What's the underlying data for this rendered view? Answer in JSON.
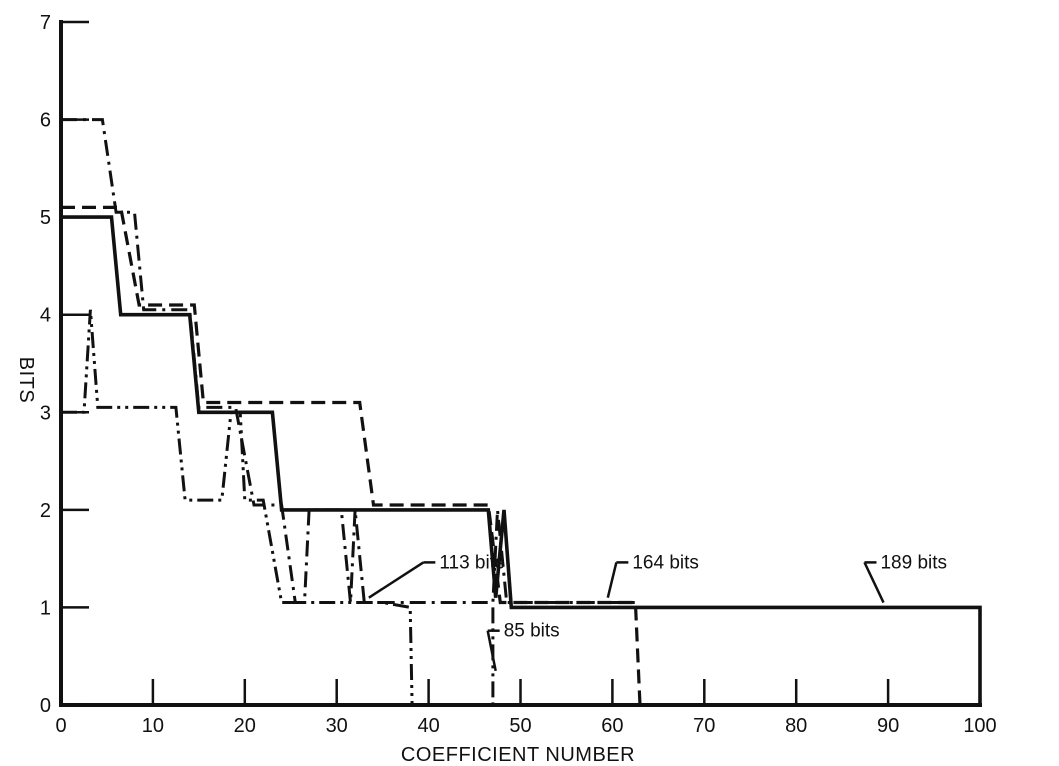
{
  "chart_data": {
    "type": "line",
    "title": "",
    "xlabel": "COEFFICIENT NUMBER",
    "ylabel": "BITS",
    "xlim": [
      0,
      100
    ],
    "ylim": [
      0,
      7
    ],
    "grid": false,
    "x_ticks": [
      0,
      10,
      20,
      30,
      40,
      50,
      60,
      70,
      80,
      90,
      100
    ],
    "y_ticks": [
      0,
      1,
      2,
      3,
      4,
      5,
      6,
      7
    ],
    "series": [
      {
        "style": "solid",
        "color": "#111111",
        "points": [
          [
            0,
            5
          ],
          [
            5.5,
            5
          ],
          [
            6.5,
            4
          ],
          [
            14,
            4
          ],
          [
            15,
            3
          ],
          [
            23,
            3
          ],
          [
            24,
            2
          ],
          [
            46.5,
            2
          ],
          [
            47.3,
            1.1
          ],
          [
            48.2,
            2
          ],
          [
            49,
            1
          ],
          [
            100,
            1
          ],
          [
            100,
            0
          ]
        ]
      },
      {
        "style": "dashed",
        "color": "#111111",
        "points": [
          [
            0,
            5.1
          ],
          [
            6.5,
            5.1
          ],
          [
            8.5,
            4.1
          ],
          [
            14.5,
            4.1
          ],
          [
            15.5,
            3.1
          ],
          [
            32.5,
            3.1
          ],
          [
            34,
            2.05
          ],
          [
            46.5,
            2.05
          ],
          [
            47.8,
            1.05
          ],
          [
            62.5,
            1.05
          ],
          [
            63,
            0
          ]
        ]
      },
      {
        "style": "dash-dot",
        "color": "#111111",
        "points": [
          [
            0,
            6
          ],
          [
            4.5,
            6
          ],
          [
            6,
            5.05
          ],
          [
            8,
            5.05
          ],
          [
            9,
            4.05
          ],
          [
            14,
            4.05
          ],
          [
            15,
            3.05
          ],
          [
            19,
            3.05
          ],
          [
            21,
            2.05
          ],
          [
            24,
            2.05
          ],
          [
            25.5,
            1.05
          ],
          [
            26.5,
            1.05
          ],
          [
            27,
            2
          ],
          [
            30.5,
            2
          ],
          [
            31.5,
            1.05
          ],
          [
            32,
            2
          ],
          [
            33,
            1.05
          ],
          [
            47,
            1.05
          ],
          [
            47.5,
            2
          ],
          [
            48.5,
            1.05
          ],
          [
            62.5,
            1.05
          ]
        ]
      },
      {
        "style": "dash-dot-dot",
        "color": "#111111",
        "points": [
          [
            0,
            3
          ],
          [
            2.5,
            3
          ],
          [
            3.2,
            4.05
          ],
          [
            4,
            3.05
          ],
          [
            12.5,
            3.05
          ],
          [
            13.5,
            2.1
          ],
          [
            17.5,
            2.1
          ],
          [
            18.5,
            3
          ],
          [
            19.5,
            3
          ],
          [
            20,
            2.1
          ],
          [
            22,
            2.1
          ],
          [
            24,
            1.05
          ],
          [
            35,
            1.05
          ],
          [
            38,
            1
          ],
          [
            38.2,
            0
          ]
        ]
      },
      {
        "style": "dash-dot-dot",
        "color": "#111111",
        "points": [
          [
            47,
            1
          ],
          [
            47,
            0
          ]
        ]
      }
    ],
    "annotations": [
      {
        "text": "113 bits",
        "x": 44,
        "y": 1.4,
        "target": [
          33.5,
          1.1
        ]
      },
      {
        "text": "164 bits",
        "x": 65,
        "y": 1.4,
        "target": [
          59.5,
          1.1
        ]
      },
      {
        "text": "189 bits",
        "x": 92,
        "y": 1.4,
        "target": [
          89.5,
          1.05
        ]
      },
      {
        "text": "85 bits",
        "x": 51,
        "y": 0.7,
        "target": [
          47.3,
          0.35
        ]
      }
    ]
  }
}
